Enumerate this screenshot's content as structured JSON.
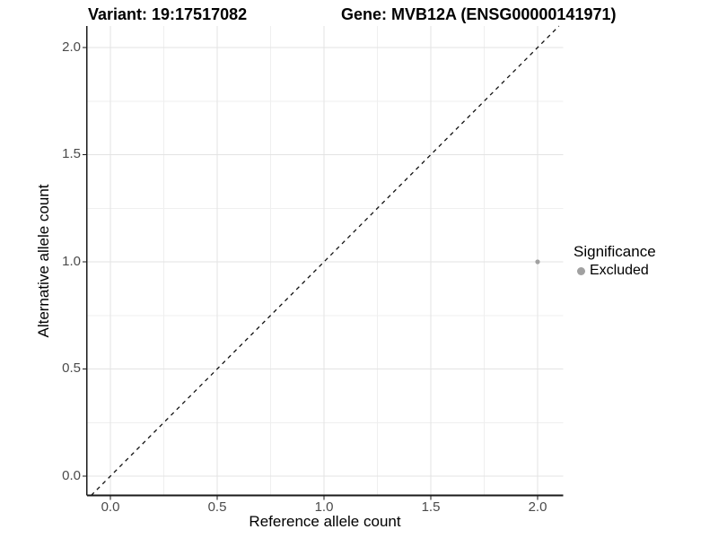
{
  "chart_data": {
    "type": "scatter",
    "title_left": "Variant: 19:17517082",
    "title_right": "Gene: MVB12A (ENSG00000141971)",
    "xlabel": "Reference allele count",
    "ylabel": "Alternative allele count",
    "xlim": [
      -0.11,
      2.12
    ],
    "ylim": [
      -0.09,
      2.1
    ],
    "x_ticks": [
      "0.0",
      "0.5",
      "1.0",
      "1.5",
      "2.0"
    ],
    "y_ticks": [
      "0.0",
      "0.5",
      "1.0",
      "1.5",
      "2.0"
    ],
    "x_tick_values": [
      0,
      0.5,
      1.0,
      1.5,
      2.0
    ],
    "y_tick_values": [
      0,
      0.5,
      1.0,
      1.5,
      2.0
    ],
    "minor_tick_step": 0.25,
    "grid": true,
    "points": [
      {
        "x": 2.0,
        "y": 1.0,
        "significance": "Excluded",
        "color": "#A1A1A1",
        "radius": 2.6
      }
    ],
    "reference_line": {
      "kind": "identity",
      "slope": 1,
      "intercept": 0,
      "style": "dashed",
      "color": "#111111"
    },
    "legend": {
      "title": "Significance",
      "position": "right",
      "items": [
        {
          "label": "Excluded",
          "color": "#A1A1A1"
        }
      ]
    },
    "colors": {
      "background": "#FFFFFF",
      "grid_major": "#E3E3E3",
      "grid_minor": "#EFEFEF",
      "axis_line": "#1A1A1A",
      "tick_label": "#4A4A4A",
      "title_text": "#000000"
    }
  }
}
